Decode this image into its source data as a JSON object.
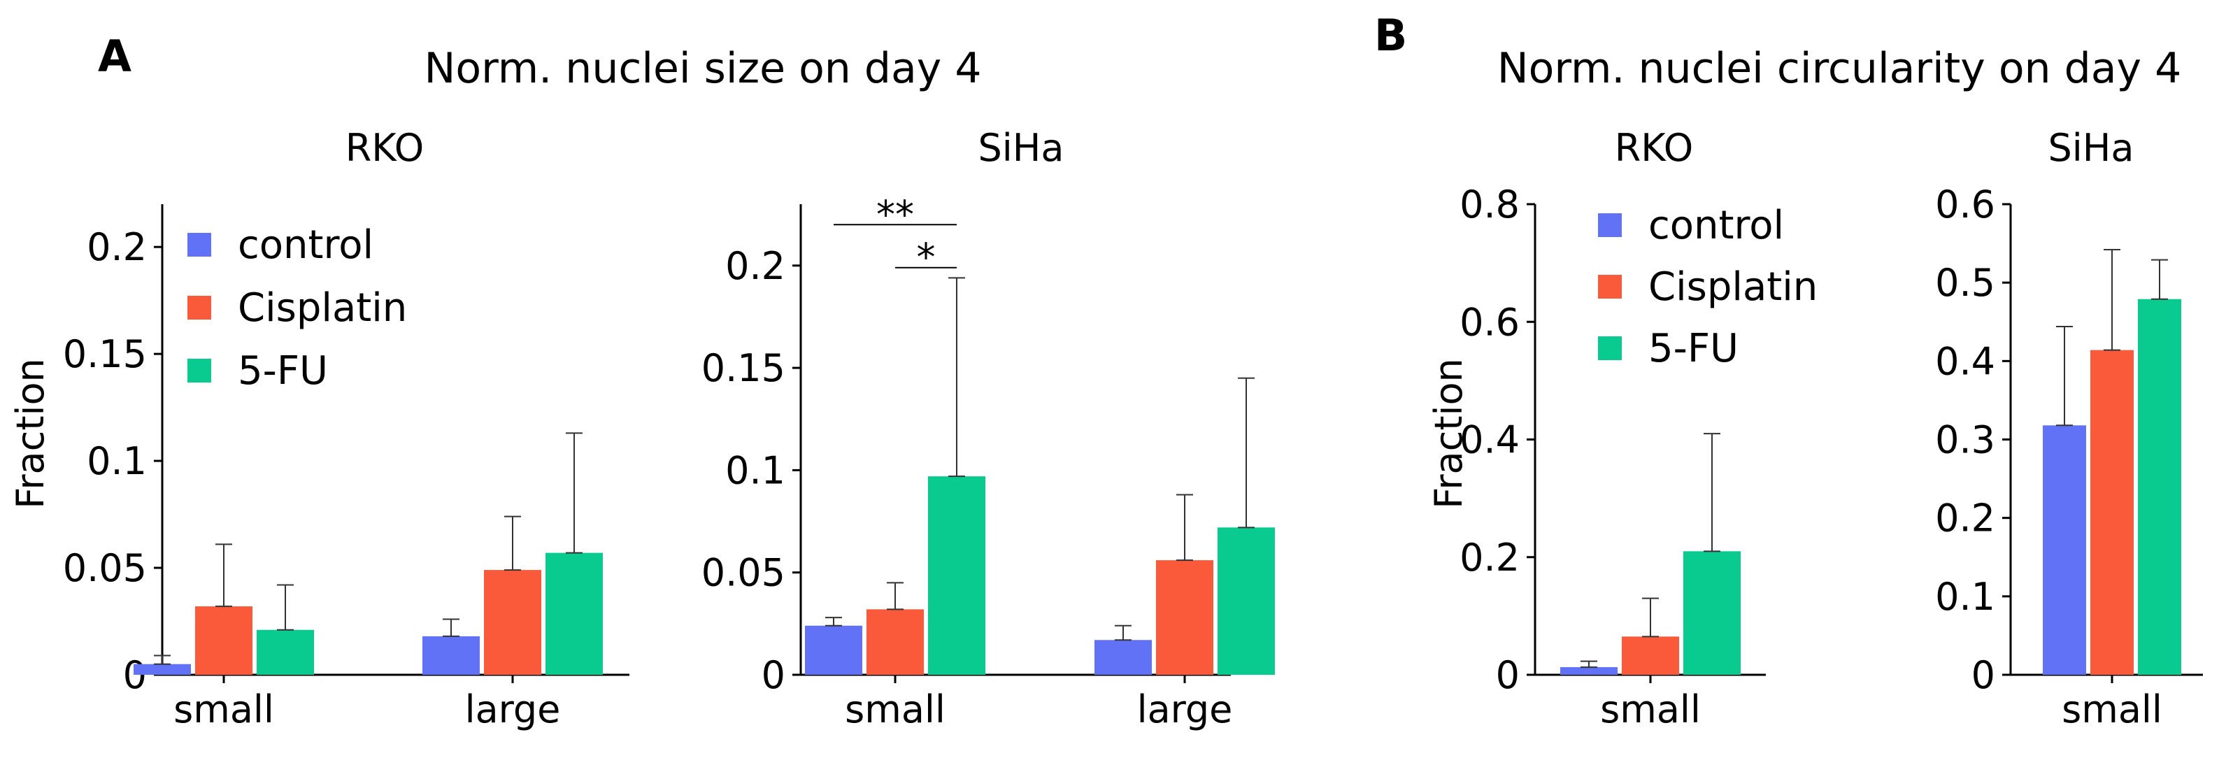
{
  "colors": {
    "control": "#6172f6",
    "Cisplatin": "#fa5a3a",
    "5-FU": "#09cb90",
    "axis": "#000000",
    "error": "#333333"
  },
  "panels": [
    {
      "letter": "A",
      "title": "Norm. nuclei size on day 4"
    },
    {
      "letter": "B",
      "title": "Norm. nuclei circularity on day 4"
    }
  ],
  "chart_data": [
    {
      "type": "bar",
      "panel": "A",
      "title": "RKO",
      "ylabel": "Fraction",
      "categories": [
        "small",
        "large"
      ],
      "ylim": [
        0,
        0.22
      ],
      "yticks": [
        0,
        0.05,
        0.1,
        0.15,
        0.2
      ],
      "ytick_labels": [
        "0",
        "0.05",
        "0.1",
        "0.15",
        "0.2"
      ],
      "legend": [
        "control",
        "Cisplatin",
        "5-FU"
      ],
      "series": [
        {
          "name": "control",
          "values": [
            0.005,
            0.018
          ],
          "errors": [
            0.004,
            0.008
          ]
        },
        {
          "name": "Cisplatin",
          "values": [
            0.032,
            0.049
          ],
          "errors": [
            0.029,
            0.025
          ]
        },
        {
          "name": "5-FU",
          "values": [
            0.021,
            0.057
          ],
          "errors": [
            0.021,
            0.056
          ]
        }
      ],
      "annotations": []
    },
    {
      "type": "bar",
      "panel": "A",
      "title": "SiHa",
      "ylabel": "",
      "categories": [
        "small",
        "large"
      ],
      "ylim": [
        0,
        0.23
      ],
      "yticks": [
        0,
        0.05,
        0.1,
        0.15,
        0.2
      ],
      "ytick_labels": [
        "0",
        "0.05",
        "0.1",
        "0.15",
        "0.2"
      ],
      "legend": [],
      "series": [
        {
          "name": "control",
          "values": [
            0.024,
            0.017
          ],
          "errors": [
            0.004,
            0.007
          ]
        },
        {
          "name": "Cisplatin",
          "values": [
            0.032,
            0.056
          ],
          "errors": [
            0.013,
            0.032
          ]
        },
        {
          "name": "5-FU",
          "values": [
            0.097,
            0.072
          ],
          "errors": [
            0.097,
            0.073
          ]
        }
      ],
      "annotations": [
        {
          "label": "**",
          "from_series": 0,
          "to_series": 2,
          "category": 0,
          "y": 0.22
        },
        {
          "label": "*",
          "from_series": 1,
          "to_series": 2,
          "category": 0,
          "y": 0.199
        }
      ]
    },
    {
      "type": "bar",
      "panel": "B",
      "title": "RKO",
      "ylabel": "Fraction",
      "categories": [
        "small"
      ],
      "ylim": [
        0,
        0.8
      ],
      "yticks": [
        0,
        0.2,
        0.4,
        0.6,
        0.8
      ],
      "ytick_labels": [
        "0",
        "0.2",
        "0.4",
        "0.6",
        "0.8"
      ],
      "legend": [
        "control",
        "Cisplatin",
        "5-FU"
      ],
      "series": [
        {
          "name": "control",
          "values": [
            0.013
          ],
          "errors": [
            0.01
          ]
        },
        {
          "name": "Cisplatin",
          "values": [
            0.065
          ],
          "errors": [
            0.065
          ]
        },
        {
          "name": "5-FU",
          "values": [
            0.21
          ],
          "errors": [
            0.2
          ]
        }
      ],
      "annotations": []
    },
    {
      "type": "bar",
      "panel": "B",
      "title": "SiHa",
      "ylabel": "",
      "categories": [
        "small"
      ],
      "ylim": [
        0,
        0.6
      ],
      "yticks": [
        0,
        0.1,
        0.2,
        0.3,
        0.4,
        0.5,
        0.6
      ],
      "ytick_labels": [
        "0",
        "0.1",
        "0.2",
        "0.3",
        "0.4",
        "0.5",
        "0.6"
      ],
      "legend": [],
      "series": [
        {
          "name": "control",
          "values": [
            0.318
          ],
          "errors": [
            0.126
          ]
        },
        {
          "name": "Cisplatin",
          "values": [
            0.414
          ],
          "errors": [
            0.128
          ]
        },
        {
          "name": "5-FU",
          "values": [
            0.479
          ],
          "errors": [
            0.05
          ]
        }
      ],
      "annotations": []
    }
  ]
}
